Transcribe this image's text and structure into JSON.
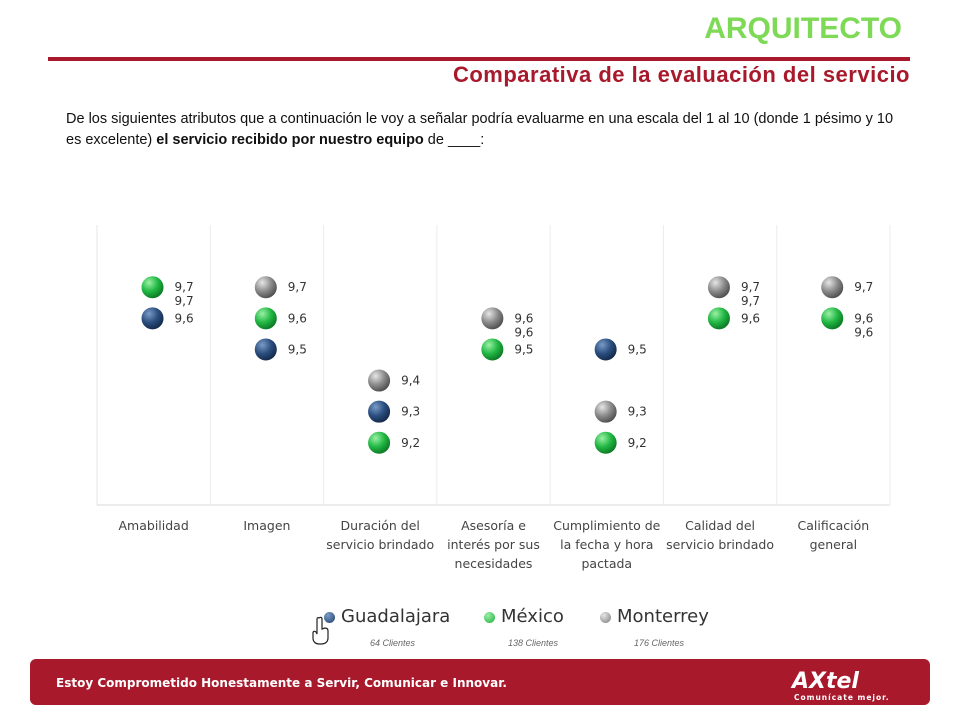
{
  "header": {
    "title": "ARQUITECTO",
    "subtitle": "Comparativa de la evaluación del servicio"
  },
  "question": {
    "part1": "De los siguientes atributos que a continuación le voy a señalar podría evaluarme en una escala del 1 al 10 (donde 1 pésimo y 10 es excelente) ",
    "bold": "el servicio recibido por nuestro equipo",
    "part2": " de ____:"
  },
  "colors": {
    "accent_red": "#a8192c",
    "title_green": "#7ed957",
    "guadalajara": "#1f3f6b",
    "mexico": "#1fae3c",
    "monterrey": "#7a7a7a"
  },
  "chart_data": {
    "type": "scatter",
    "categories": [
      "Amabilidad",
      "Imagen",
      "Duración del servicio brindado",
      "Asesoría e interés por sus necesidades",
      "Cumplimiento de la fecha y hora pactada",
      "Calidad del servicio brindado",
      "Calificación general"
    ],
    "category_lines": [
      [
        "Amabilidad"
      ],
      [
        "Imagen"
      ],
      [
        "Duración del",
        "servicio brindado"
      ],
      [
        "Asesoría e",
        "interés por sus",
        "necesidades"
      ],
      [
        "Cumplimiento de",
        "la fecha y hora",
        "pactada"
      ],
      [
        "Calidad del",
        "servicio brindado"
      ],
      [
        "Calificación",
        "general"
      ]
    ],
    "series": [
      {
        "name": "Guadalajara",
        "values": [
          9.6,
          9.5,
          9.3,
          9.6,
          9.5,
          9.7,
          9.6
        ],
        "labels": [
          "9,6",
          "9,5",
          "9,3",
          "9,6",
          "9,5",
          "9,7",
          "9,6"
        ]
      },
      {
        "name": "México",
        "values": [
          9.7,
          9.6,
          9.2,
          9.5,
          9.2,
          9.6,
          9.6
        ],
        "labels": [
          "9,7",
          "9,6",
          "9,2",
          "9,5",
          "9,2",
          "9,6",
          "9,6"
        ]
      },
      {
        "name": "Monterrey",
        "values": [
          9.7,
          9.7,
          9.4,
          9.6,
          9.3,
          9.7,
          9.7
        ],
        "labels": [
          "9,7",
          "9,7",
          "9,4",
          "9,6",
          "9,3",
          "9,7",
          "9,7"
        ]
      }
    ],
    "legend": [
      {
        "name": "Guadalajara",
        "note": "64 Clientes"
      },
      {
        "name": "México",
        "note": "138 Clientes"
      },
      {
        "name": "Monterrey",
        "note": "176 Clientes"
      }
    ],
    "legend_position": "bottom",
    "grid": true
  },
  "footer": {
    "text": "Estoy Comprometido Honestamente a Servir, Comunicar e Innovar.",
    "logo": "AXtel",
    "logo_tagline": "Comunícate mejor."
  }
}
